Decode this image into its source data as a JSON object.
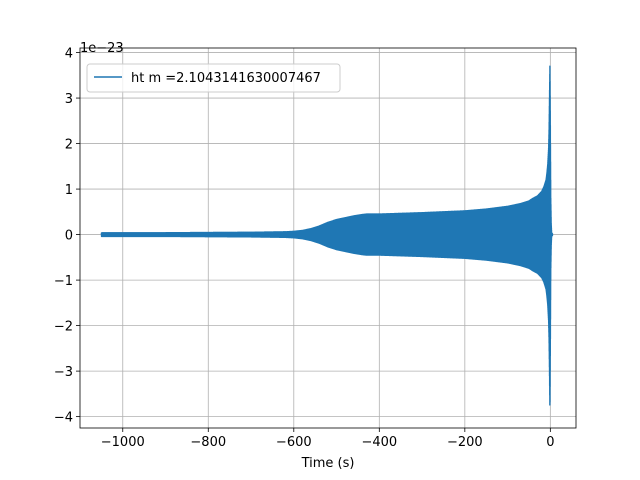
{
  "chart_data": {
    "type": "line",
    "title": "",
    "xlabel": "Time (s)",
    "ylabel": "",
    "y_scale_label": "1e−23",
    "xlim": [
      -1100,
      60
    ],
    "ylim": [
      -4.25,
      4.1
    ],
    "xticks": [
      -1000,
      -800,
      -600,
      -400,
      -200,
      0
    ],
    "xtick_labels": [
      "−1000",
      "−800",
      "−600",
      "−400",
      "−200",
      "0"
    ],
    "yticks": [
      -4,
      -3,
      -2,
      -1,
      0,
      1,
      2,
      3,
      4
    ],
    "ytick_labels": [
      "−4",
      "−3",
      "−2",
      "−1",
      "0",
      "1",
      "2",
      "3",
      "4"
    ],
    "grid": true,
    "legend_position": "top-left",
    "series": [
      {
        "name": "ht m =2.1043141630007467",
        "color": "#1f77b4",
        "x_range": [
          -1050,
          5
        ],
        "envelope": {
          "x": [
            -1050,
            -900,
            -700,
            -620,
            -600,
            -580,
            -560,
            -540,
            -520,
            -500,
            -480,
            -460,
            -440,
            -430,
            -420,
            -400,
            -300,
            -200,
            -150,
            -100,
            -70,
            -50,
            -40,
            -30,
            -20,
            -15,
            -10,
            -8,
            -6,
            -4,
            -3,
            -2,
            -1,
            0,
            1,
            2,
            3,
            4
          ],
          "upper": [
            0.04,
            0.04,
            0.05,
            0.06,
            0.07,
            0.09,
            0.13,
            0.19,
            0.27,
            0.33,
            0.37,
            0.41,
            0.44,
            0.45,
            0.45,
            0.45,
            0.48,
            0.52,
            0.56,
            0.62,
            0.68,
            0.74,
            0.8,
            0.85,
            0.95,
            1.05,
            1.2,
            1.35,
            1.55,
            1.9,
            2.3,
            3.0,
            3.7,
            2.4,
            0.8,
            0.25,
            0.05,
            0.02
          ],
          "lower": [
            -0.04,
            -0.04,
            -0.05,
            -0.06,
            -0.07,
            -0.09,
            -0.13,
            -0.19,
            -0.27,
            -0.33,
            -0.37,
            -0.41,
            -0.44,
            -0.45,
            -0.45,
            -0.45,
            -0.48,
            -0.52,
            -0.56,
            -0.62,
            -0.68,
            -0.74,
            -0.8,
            -0.85,
            -0.95,
            -1.05,
            -1.2,
            -1.35,
            -1.55,
            -1.9,
            -2.3,
            -3.0,
            -3.85,
            -2.5,
            -0.8,
            -0.25,
            -0.05,
            -0.02
          ]
        }
      }
    ]
  }
}
